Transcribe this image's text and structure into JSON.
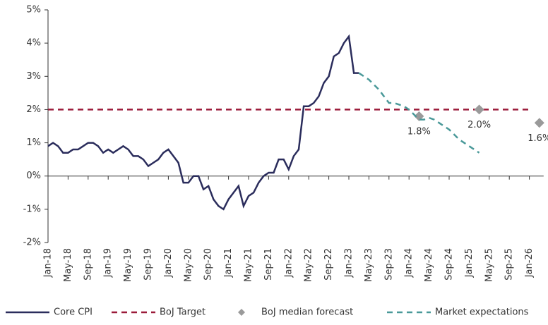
{
  "chart_data": {
    "type": "line",
    "categories": [
      "Jan-18",
      null,
      null,
      null,
      "May-18",
      null,
      null,
      null,
      "Sep-18",
      null,
      null,
      null,
      "Jan-19",
      null,
      null,
      null,
      "May-19",
      null,
      null,
      null,
      "Sep-19",
      null,
      null,
      null,
      "Jan-20",
      null,
      null,
      null,
      "May-20",
      null,
      null,
      null,
      "Sep-20",
      null,
      null,
      null,
      "Jan-21",
      null,
      null,
      null,
      "May-21",
      null,
      null,
      null,
      "Sep-21",
      null,
      null,
      null,
      "Jan-22",
      null,
      null,
      null,
      "May-22",
      null,
      null,
      null,
      "Sep-22",
      null,
      null,
      null,
      "Jan-23",
      null,
      null,
      null,
      "May-23",
      null,
      null,
      null,
      "Sep-23",
      null,
      null,
      null,
      "Jan-24",
      null,
      null,
      null,
      "May-24",
      null,
      null,
      null,
      "Sep-24",
      null,
      null,
      null,
      "Jan-25",
      null,
      null,
      null,
      "May-25",
      null,
      null,
      null,
      "Sep-25",
      null,
      null,
      null,
      "Jan-26",
      null,
      null
    ],
    "series": [
      {
        "name": "Core CPI",
        "color": "#2b2d5c",
        "style": "solid",
        "values": [
          0.9,
          1.0,
          0.9,
          0.7,
          0.7,
          0.8,
          0.8,
          0.9,
          1.0,
          1.0,
          0.9,
          0.7,
          0.8,
          0.7,
          0.8,
          0.9,
          0.8,
          0.6,
          0.6,
          0.5,
          0.3,
          0.4,
          0.5,
          0.7,
          0.8,
          0.6,
          0.4,
          -0.2,
          -0.2,
          0.0,
          0.0,
          -0.4,
          -0.3,
          -0.7,
          -0.9,
          -1.0,
          -0.7,
          -0.5,
          -0.3,
          -0.9,
          -0.6,
          -0.5,
          -0.2,
          0.0,
          0.1,
          0.1,
          0.5,
          0.5,
          0.2,
          0.6,
          0.8,
          2.1,
          2.1,
          2.2,
          2.4,
          2.8,
          3.0,
          3.6,
          3.7,
          4.0,
          4.2,
          3.1,
          3.1,
          null,
          null,
          null,
          null,
          null,
          null,
          null,
          null,
          null,
          null,
          null,
          null,
          null,
          null,
          null,
          null,
          null,
          null,
          null,
          null,
          null,
          null,
          null,
          null,
          null,
          null,
          null,
          null,
          null,
          null,
          null,
          null,
          null,
          null,
          null,
          null
        ]
      },
      {
        "name": "BoJ Target",
        "color": "#9b1b3a",
        "style": "dashed",
        "values": [
          2,
          2,
          2,
          2,
          2,
          2,
          2,
          2,
          2,
          2,
          2,
          2,
          2,
          2,
          2,
          2,
          2,
          2,
          2,
          2,
          2,
          2,
          2,
          2,
          2,
          2,
          2,
          2,
          2,
          2,
          2,
          2,
          2,
          2,
          2,
          2,
          2,
          2,
          2,
          2,
          2,
          2,
          2,
          2,
          2,
          2,
          2,
          2,
          2,
          2,
          2,
          2,
          2,
          2,
          2,
          2,
          2,
          2,
          2,
          2,
          2,
          2,
          2,
          2,
          2,
          2,
          2,
          2,
          2,
          2,
          2,
          2,
          2,
          2,
          2,
          2,
          2,
          2,
          2,
          2,
          2,
          2,
          2,
          2,
          2,
          2,
          2,
          2,
          2,
          2,
          2,
          2,
          2,
          2,
          2,
          2,
          2,
          null,
          null
        ]
      },
      {
        "name": "BoJ median forecast",
        "color": "#9a9a9a",
        "style": "marker",
        "values": [
          null,
          null,
          null,
          null,
          null,
          null,
          null,
          null,
          null,
          null,
          null,
          null,
          null,
          null,
          null,
          null,
          null,
          null,
          null,
          null,
          null,
          null,
          null,
          null,
          null,
          null,
          null,
          null,
          null,
          null,
          null,
          null,
          null,
          null,
          null,
          null,
          null,
          null,
          null,
          null,
          null,
          null,
          null,
          null,
          null,
          null,
          null,
          null,
          null,
          null,
          null,
          null,
          null,
          null,
          null,
          null,
          null,
          null,
          null,
          null,
          null,
          null,
          null,
          null,
          null,
          null,
          null,
          null,
          null,
          null,
          null,
          null,
          null,
          null,
          1.8,
          null,
          null,
          null,
          null,
          null,
          null,
          null,
          null,
          null,
          null,
          null,
          2.0,
          null,
          null,
          null,
          null,
          null,
          null,
          null,
          null,
          null,
          null,
          null,
          1.6
        ],
        "value_labels": [
          null,
          null,
          null,
          null,
          null,
          null,
          null,
          null,
          null,
          null,
          null,
          null,
          null,
          null,
          null,
          null,
          null,
          null,
          null,
          null,
          null,
          null,
          null,
          null,
          null,
          null,
          null,
          null,
          null,
          null,
          null,
          null,
          null,
          null,
          null,
          null,
          null,
          null,
          null,
          null,
          null,
          null,
          null,
          null,
          null,
          null,
          null,
          null,
          null,
          null,
          null,
          null,
          null,
          null,
          null,
          null,
          null,
          null,
          null,
          null,
          null,
          null,
          null,
          null,
          null,
          null,
          null,
          null,
          null,
          null,
          null,
          null,
          null,
          null,
          "1.8%",
          null,
          null,
          null,
          null,
          null,
          null,
          null,
          null,
          null,
          null,
          null,
          "2.0%",
          null,
          null,
          null,
          null,
          null,
          null,
          null,
          null,
          null,
          null,
          null,
          "1.6%"
        ]
      },
      {
        "name": "Market expectations",
        "color": "#4a9999",
        "style": "dashed",
        "values": [
          null,
          null,
          null,
          null,
          null,
          null,
          null,
          null,
          null,
          null,
          null,
          null,
          null,
          null,
          null,
          null,
          null,
          null,
          null,
          null,
          null,
          null,
          null,
          null,
          null,
          null,
          null,
          null,
          null,
          null,
          null,
          null,
          null,
          null,
          null,
          null,
          null,
          null,
          null,
          null,
          null,
          null,
          null,
          null,
          null,
          null,
          null,
          null,
          null,
          null,
          null,
          null,
          null,
          null,
          null,
          null,
          null,
          null,
          null,
          null,
          null,
          null,
          3.1,
          3.0,
          2.9,
          2.75,
          2.6,
          2.4,
          2.2,
          2.2,
          2.15,
          2.1,
          2.0,
          1.85,
          1.7,
          1.7,
          1.75,
          1.7,
          1.6,
          1.5,
          1.4,
          1.25,
          1.1,
          1.0,
          0.9,
          0.8,
          0.7,
          null,
          null,
          null,
          null,
          null,
          null,
          null,
          null,
          null,
          null,
          null,
          null
        ]
      }
    ],
    "ylim": [
      -2,
      5
    ],
    "yticks": [
      {
        "value": -2,
        "label": "-2%"
      },
      {
        "value": -1,
        "label": "-1%"
      },
      {
        "value": 0,
        "label": "0%"
      },
      {
        "value": 1,
        "label": "1%"
      },
      {
        "value": 2,
        "label": "2%"
      },
      {
        "value": 3,
        "label": "3%"
      },
      {
        "value": 4,
        "label": "4%"
      },
      {
        "value": 5,
        "label": "5%"
      }
    ],
    "legend": "bottom"
  }
}
